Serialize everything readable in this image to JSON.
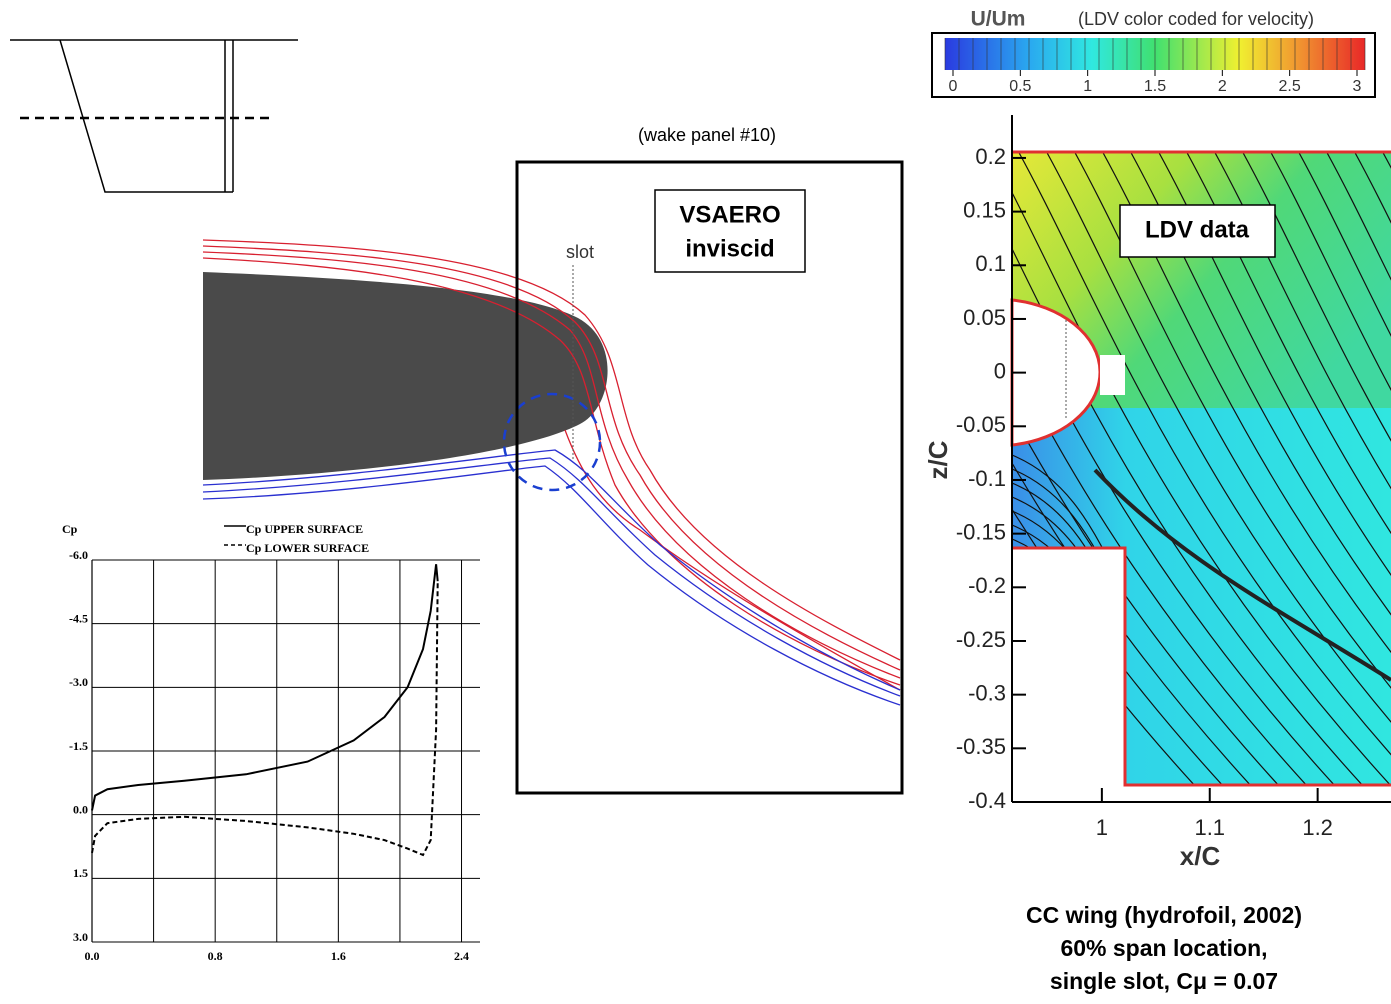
{
  "annotations": {
    "wake_panel": "(wake panel #10)",
    "vsaero": [
      "VSAERO",
      "inviscid"
    ],
    "slot": "slot",
    "ldv": "LDV data"
  },
  "caption": [
    "CC wing (hydrofoil, 2002)",
    "60% span location,",
    "single slot, Cμ = 0.07"
  ],
  "chart_data": [
    {
      "type": "line",
      "y_label": "Cp",
      "x": [
        0,
        0.02,
        0.1,
        0.3,
        0.6,
        1.0,
        1.4,
        1.7,
        1.9,
        2.05,
        2.15,
        2.2,
        2.235,
        2.245
      ],
      "series": [
        {
          "name": "Cp UPPER SURFACE",
          "color": "#000000",
          "dash": false,
          "values": [
            -0.1,
            -0.45,
            -0.6,
            -0.7,
            -0.8,
            -0.95,
            -1.25,
            -1.75,
            -2.3,
            -3.0,
            -3.9,
            -4.8,
            -5.9,
            -5.5
          ]
        },
        {
          "name": "Cp LOWER SURFACE",
          "color": "#000000",
          "dash": true,
          "values": [
            0.9,
            0.5,
            0.2,
            0.1,
            0.05,
            0.15,
            0.3,
            0.45,
            0.6,
            0.8,
            0.95,
            0.6,
            -2.0,
            -5.5
          ]
        }
      ],
      "xlim": [
        0,
        2.52
      ],
      "ylim": [
        3.0,
        -6.0
      ],
      "xticks": [
        {
          "value": 0,
          "label": "0.0"
        },
        {
          "value": 0.8,
          "label": "0.8"
        },
        {
          "value": 1.6,
          "label": "1.6"
        },
        {
          "value": 2.4,
          "label": "2.4"
        }
      ],
      "xminor": [
        0.4,
        1.2,
        2.0
      ],
      "yticks": [
        {
          "value": -6,
          "label": "-6.0"
        },
        -4.5,
        {
          "value": -3,
          "label": "-3.0"
        },
        -1.5,
        {
          "value": 0,
          "label": "0.0"
        },
        1.5,
        {
          "value": 3,
          "label": "3.0"
        }
      ],
      "grid": true
    },
    {
      "type": "contour",
      "x_label": "x/C",
      "y_label": "z/C",
      "xlim": [
        0.9167,
        1.268
      ],
      "ylim": [
        -0.4,
        0.24
      ],
      "xticks": [
        1,
        1.1,
        1.2
      ],
      "yticks": [
        0.2,
        0.15,
        0.1,
        0.05,
        0,
        -0.05,
        -0.1,
        -0.15,
        -0.2,
        -0.25,
        -0.3,
        -0.35,
        -0.4
      ],
      "colorbar": {
        "title": "U/Um",
        "subtitle": "(LDV color coded for velocity)",
        "lim": [
          0,
          3
        ],
        "ticks": [
          0,
          0.5,
          1,
          1.5,
          2,
          2.5,
          3
        ]
      }
    }
  ]
}
